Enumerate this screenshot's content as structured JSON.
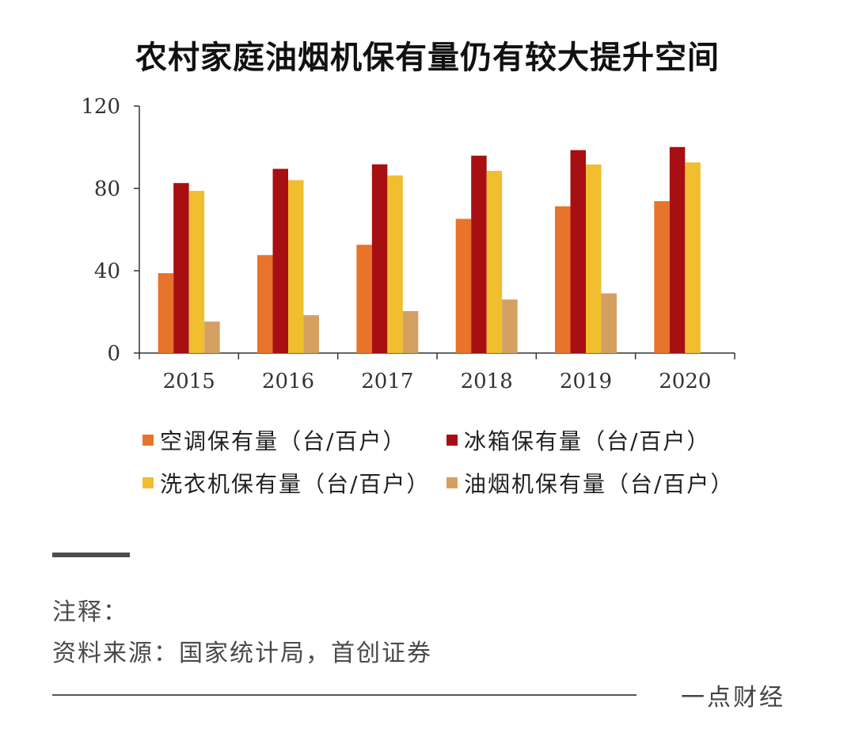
{
  "chart_data": {
    "type": "bar",
    "title": "农村家庭油烟机保有量仍有较大提升空间",
    "categories": [
      "2015",
      "2016",
      "2017",
      "2018",
      "2019",
      "2020"
    ],
    "series": [
      {
        "name": "空调保有量（台/百户）",
        "color": "#E8732A",
        "values": [
          38.8,
          47.6,
          52.6,
          65.2,
          71.3,
          73.8
        ]
      },
      {
        "name": "冰箱保有量（台/百户）",
        "color": "#A80F12",
        "values": [
          82.6,
          89.5,
          91.7,
          95.9,
          98.6,
          100.1
        ]
      },
      {
        "name": "洗衣机保有量（台/百户）",
        "color": "#F0BE2E",
        "values": [
          78.8,
          84.0,
          86.3,
          88.5,
          91.6,
          92.6
        ]
      },
      {
        "name": "油烟机保有量（台/百户）",
        "color": "#D4A062",
        "values": [
          15.3,
          18.4,
          20.4,
          26.0,
          29.0,
          null
        ]
      }
    ],
    "yticks": [
      "0",
      "40",
      "80",
      "120"
    ],
    "ylim": [
      0,
      120
    ],
    "xlabel": "",
    "ylabel": "",
    "legend_position": "bottom"
  },
  "notes": {
    "label": "注释：",
    "source": "资料来源：国家统计局，首创证券"
  },
  "footer": {
    "brand": "一点财经"
  }
}
